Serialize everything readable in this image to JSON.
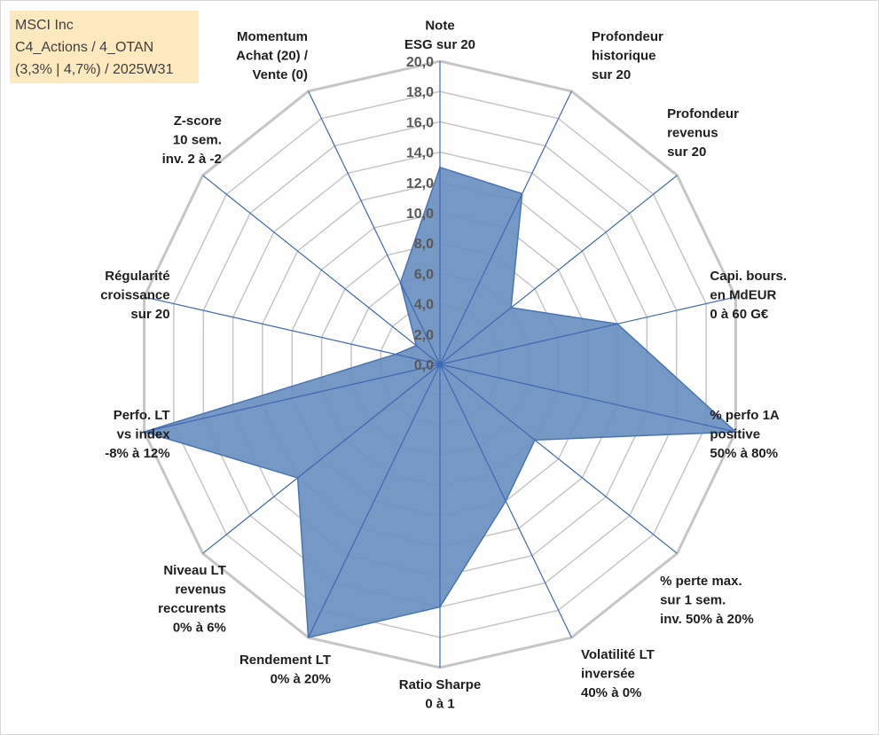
{
  "title_box": {
    "lines": [
      "MSCI Inc",
      "C4_Actions / 4_OTAN",
      "(3,3% | 4,7%) / 2025W31"
    ]
  },
  "chart_data": {
    "type": "radar",
    "rmin": 0,
    "rmax": 20,
    "tick_step": 2,
    "tick_labels": [
      "0,0",
      "2,0",
      "4,0",
      "6,0",
      "8,0",
      "10,0",
      "12,0",
      "14,0",
      "16,0",
      "18,0",
      "20,0"
    ],
    "grid": true,
    "axes": [
      {
        "label": [
          "Note",
          "ESG sur 20"
        ],
        "value": 13.0
      },
      {
        "label": [
          "Profondeur",
          "historique",
          "sur 20"
        ],
        "value": 12.5
      },
      {
        "label": [
          "Profondeur",
          "revenus",
          "sur 20"
        ],
        "value": 6.0
      },
      {
        "label": [
          "Capi. bours.",
          "en MdEUR",
          "0 à 60 G€"
        ],
        "value": 12.0
      },
      {
        "label": [
          "% perfo 1A",
          "positive",
          "50% à 80%"
        ],
        "value": 20.0
      },
      {
        "label": [
          "% perte max.",
          "sur 1 sem.",
          "inv. 50% à 20%"
        ],
        "value": 8.0
      },
      {
        "label": [
          "Volatilité LT",
          "inversée",
          "40% à 0%"
        ],
        "value": 10.0
      },
      {
        "label": [
          "Ratio Sharpe",
          "0 à 1"
        ],
        "value": 16.0
      },
      {
        "label": [
          "Rendement LT",
          "0% à 20%"
        ],
        "value": 20.0
      },
      {
        "label": [
          "Niveau LT",
          "revenus",
          "reccurents",
          "0% à 6%"
        ],
        "value": 12.0
      },
      {
        "label": [
          "Perfo. LT",
          "vs index",
          "-8% à 12%"
        ],
        "value": 20.0
      },
      {
        "label": [
          "Régularité",
          "croissance",
          "sur 20"
        ],
        "value": 3.0
      },
      {
        "label": [
          "Z-score",
          "10 sem.",
          "inv. 2 à -2"
        ],
        "value": 2.0
      },
      {
        "label": [
          "Momentum",
          "Achat (20) /",
          "Vente (0)"
        ],
        "value": 6.0
      }
    ],
    "colors": {
      "fill": "#6a8fbf",
      "stroke": "#4a74b4",
      "spoke": "#3f67b5",
      "grid": "#c6c6c6"
    }
  }
}
